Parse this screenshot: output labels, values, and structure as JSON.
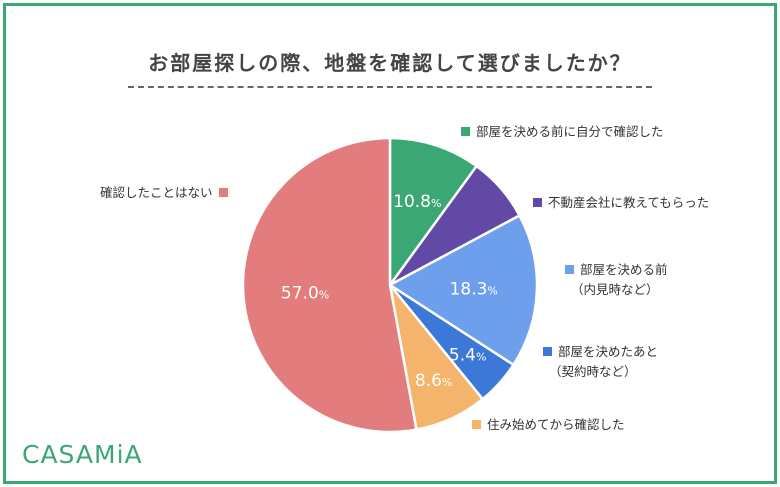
{
  "chart_data": {
    "type": "pie",
    "title": "お部屋探しの際、地盤を確認して選びましたか？",
    "slices": [
      {
        "label": "部屋を決める前に自分で確認した",
        "value": 10.8,
        "display": "10.8",
        "color": "#3aa775"
      },
      {
        "label": "不動産会社に教えてもらった",
        "value": 7.7,
        "display": "",
        "color": "#6249a6"
      },
      {
        "label": "部屋を決める前",
        "label2": "（内見時など）",
        "value": 18.3,
        "display": "18.3",
        "color": "#6e9fec"
      },
      {
        "label": "部屋を決めたあと",
        "label2": "（契約時など）",
        "value": 5.4,
        "display": "5.4",
        "color": "#3c78d8"
      },
      {
        "label": "住み始めてから確認した",
        "value": 8.6,
        "display": "8.6",
        "color": "#f5b46b"
      },
      {
        "label": "確認したことはない",
        "value": 57.0,
        "display": "57.0",
        "color": "#e37c7c"
      }
    ],
    "percent_unit": "%"
  },
  "brand": {
    "logo": "CASAMiA",
    "color": "#3aa775"
  }
}
